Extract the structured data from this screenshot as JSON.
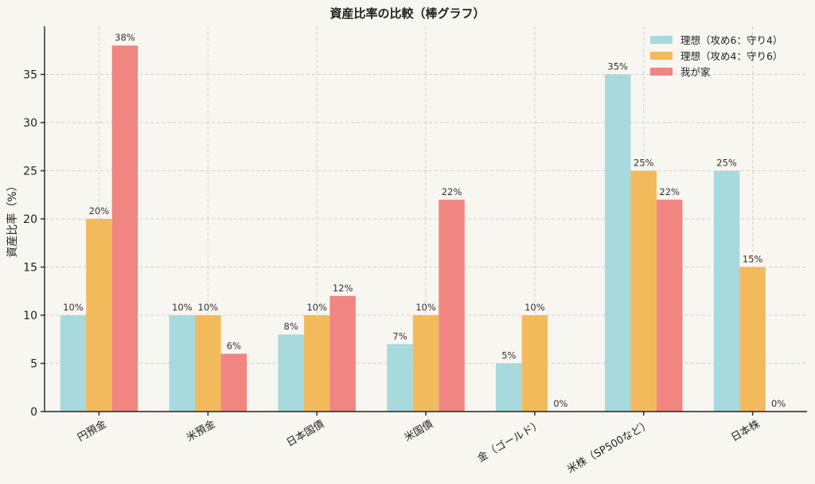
{
  "colors": {
    "series": [
      "#a8d9dc",
      "#f3ba5c",
      "#f08582"
    ],
    "background": "#f8f6f1"
  },
  "chart_data": {
    "type": "bar",
    "title": "資産比率の比較（棒グラフ）",
    "xlabel": "",
    "ylabel": "資産比率（%）",
    "ylim": [
      0,
      40
    ],
    "yticks": [
      0,
      5,
      10,
      15,
      20,
      25,
      30,
      35
    ],
    "grid": true,
    "legend_position": "top-right",
    "categories": [
      "円預金",
      "米預金",
      "日本国債",
      "米国債",
      "金（ゴールド）",
      "米株（SP500など）",
      "日本株"
    ],
    "series": [
      {
        "name": "理想（攻め6：守り4）",
        "values": [
          10,
          10,
          8,
          7,
          5,
          35,
          25
        ]
      },
      {
        "name": "理想（攻め4：守り6）",
        "values": [
          20,
          10,
          10,
          10,
          10,
          25,
          15
        ]
      },
      {
        "name": "我が家",
        "values": [
          38,
          6,
          12,
          22,
          0,
          22,
          0
        ]
      }
    ],
    "value_suffix": "%"
  }
}
